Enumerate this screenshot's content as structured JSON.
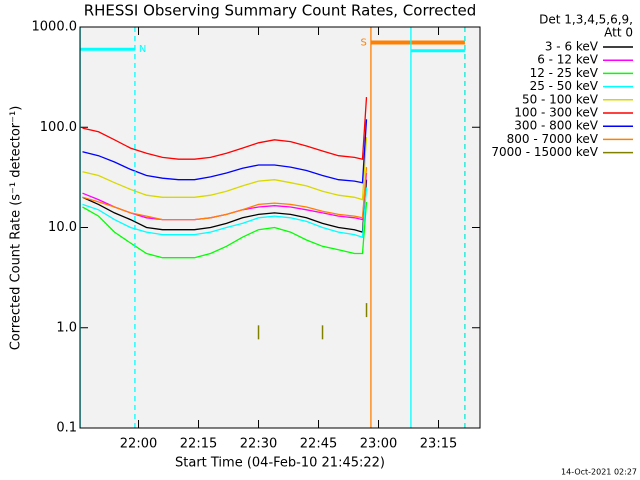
{
  "chart_data": {
    "type": "line",
    "title": "RHESSI Observing Summary Count Rates, Corrected",
    "x_label": "Start Time (04-Feb-10 21:45:22)",
    "y_label": "Corrected Count Rate (s⁻¹ detector⁻¹)",
    "legend_header": [
      "Det 1,3,4,5,6,9,",
      "Att 0"
    ],
    "footer": "14-Oct-2021 02:27",
    "log_y": true,
    "xlim": [
      1305.37,
      1405.37
    ],
    "xticks": [
      {
        "value": 1320,
        "label": "22:00"
      },
      {
        "value": 1335,
        "label": "22:15"
      },
      {
        "value": 1350,
        "label": "22:30"
      },
      {
        "value": 1365,
        "label": "22:45"
      },
      {
        "value": 1380,
        "label": "23:00"
      },
      {
        "value": 1395,
        "label": "23:15"
      }
    ],
    "ylim": [
      0.1,
      1000
    ],
    "yticks": [
      0.1,
      {
        "value": 1,
        "label": "1.0"
      },
      {
        "value": 10,
        "label": "10.0"
      },
      {
        "value": 100,
        "label": "100.0"
      },
      {
        "value": 1000,
        "label": "1000.0"
      }
    ],
    "x": [
      1306,
      1310,
      1314,
      1318,
      1322,
      1326,
      1330,
      1334,
      1338,
      1342,
      1346,
      1350,
      1354,
      1358,
      1362,
      1366,
      1370,
      1374,
      1376,
      1377
    ],
    "series": [
      {
        "name": "3 - 6 keV",
        "color": "#000000",
        "values": [
          20,
          17,
          14,
          12,
          10,
          9.5,
          9.5,
          9.5,
          10,
          11,
          12.5,
          13.5,
          14,
          13.5,
          12.5,
          11,
          10,
          9.5,
          9,
          30
        ]
      },
      {
        "name": "6 - 12 keV",
        "color": "#ff00ff",
        "values": [
          22,
          19,
          16,
          14,
          12.5,
          12,
          12,
          12,
          12.5,
          13.5,
          15,
          16,
          16.5,
          16,
          15,
          14,
          13,
          12.5,
          12,
          35
        ]
      },
      {
        "name": "12 - 25 keV",
        "color": "#00ff00",
        "values": [
          16,
          13,
          9,
          7,
          5.5,
          5,
          5,
          5,
          5.5,
          6.5,
          8,
          9.5,
          10,
          9,
          7.5,
          6.5,
          6,
          5.5,
          5.5,
          18
        ]
      },
      {
        "name": "25 - 50 keV",
        "color": "#00ffff",
        "values": [
          17,
          15,
          12,
          10,
          9,
          8.5,
          8.5,
          8.5,
          9,
          10,
          11,
          12.5,
          13,
          12.5,
          11.5,
          10,
          9,
          8.5,
          8,
          25
        ]
      },
      {
        "name": "50 - 100 keV",
        "color": "#d8d800",
        "values": [
          36,
          33,
          28,
          24,
          21,
          20,
          20,
          20,
          21,
          23,
          26,
          29,
          30,
          28,
          26,
          23,
          21,
          20,
          19,
          80
        ]
      },
      {
        "name": "100 - 300 keV",
        "color": "#ff0000",
        "values": [
          98,
          90,
          75,
          62,
          55,
          50,
          48,
          48,
          50,
          55,
          62,
          70,
          75,
          72,
          65,
          58,
          52,
          50,
          48,
          200
        ]
      },
      {
        "name": "300 - 800 keV",
        "color": "#0000ff",
        "values": [
          57,
          52,
          45,
          38,
          33,
          31,
          30,
          30,
          32,
          35,
          39,
          42,
          42,
          40,
          37,
          33,
          30,
          29,
          28,
          120
        ]
      },
      {
        "name": "800 - 7000 keV",
        "color": "#ff8000",
        "values": [
          20,
          18,
          16,
          14,
          13,
          12,
          12,
          12,
          12.5,
          13.5,
          15,
          17,
          17.5,
          17,
          16,
          14.5,
          13.5,
          13,
          12.5,
          40
        ]
      },
      {
        "name": "7000 - 15000 keV",
        "color": "#808000",
        "values": [
          null,
          null,
          null,
          null,
          null,
          null,
          null,
          null,
          null,
          null,
          null,
          0.9,
          null,
          null,
          null,
          0.9,
          null,
          null,
          null,
          1.5
        ]
      }
    ],
    "flags": [
      {
        "label": "N",
        "color": "#00ffff",
        "start": 1305.4,
        "end": 1319.1,
        "level": 600
      },
      {
        "label": "S",
        "color": "#ff8000",
        "start": 1378.1,
        "end": 1401.6,
        "level": 700
      },
      {
        "color": "#00ffff",
        "start": 1388.1,
        "end": 1401.6,
        "level": 580
      }
    ]
  }
}
